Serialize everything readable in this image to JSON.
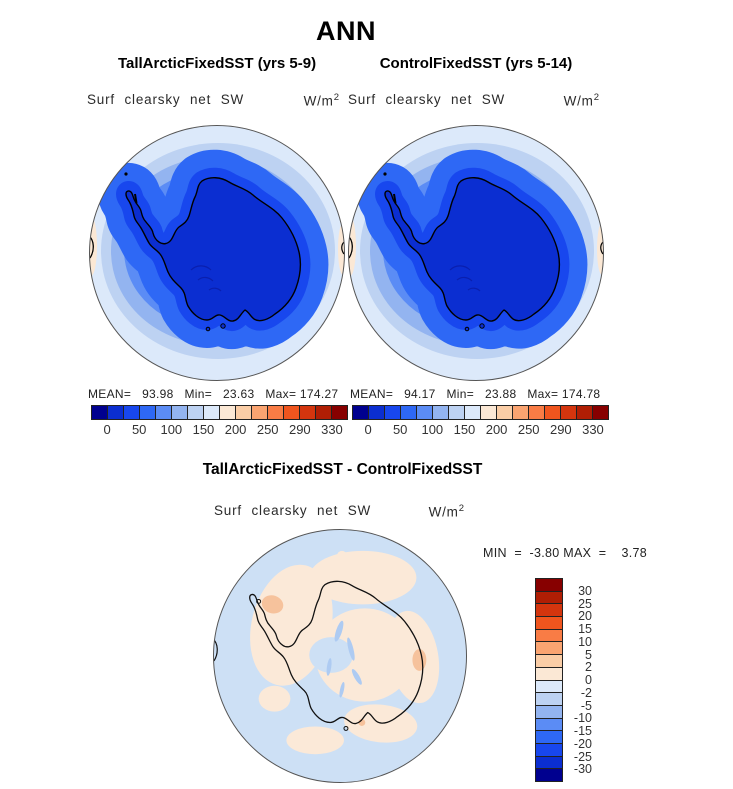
{
  "title": "ANN",
  "units": "W/m",
  "units_sup": "2",
  "palette": [
    "#00008F",
    "#0B2ED1",
    "#1847EE",
    "#2E68F5",
    "#5B8CF5",
    "#93B4F0",
    "#BDD2F2",
    "#DCE9FA",
    "#FBE8D5",
    "#FACDA6",
    "#FAA471",
    "#F97C45",
    "#F0551E",
    "#D4350E",
    "#B01E04",
    "#870000"
  ],
  "diff_colors": {
    "ocean": "#CDE0F5",
    "weak_pos": "#FBE9D8",
    "pos": "#F6C29C",
    "weak_neg": "#AECBF2",
    "coast": "#111111"
  },
  "panels": [
    {
      "subtitle": "TallArcticFixedSST (yrs 5-9)",
      "field": "Surf clearsky net SW",
      "stats": "MEAN=   93.98   Min=   23.63   Max= 174.27",
      "colorbar_ticks": [
        "0",
        "50",
        "100",
        "150",
        "200",
        "250",
        "290",
        "330"
      ]
    },
    {
      "subtitle": "ControlFixedSST (yrs 5-14)",
      "field": "Surf clearsky net SW",
      "stats": "MEAN=   94.17   Min=   23.88   Max= 174.78",
      "colorbar_ticks": [
        "0",
        "50",
        "100",
        "150",
        "200",
        "250",
        "290",
        "330"
      ]
    }
  ],
  "diff": {
    "subtitle": "TallArcticFixedSST - ControlFixedSST",
    "field": "Surf clearsky net SW",
    "minmax": "MIN  =  -3.80 MAX  =    3.78",
    "colorbar_ticks": [
      "30",
      "25",
      "20",
      "15",
      "10",
      "5",
      "2",
      "0",
      "-2",
      "-5",
      "-10",
      "-15",
      "-20",
      "-25",
      "-30"
    ]
  },
  "chart_data": {
    "type": "heatmap",
    "subtype": "filled-contour polar stereographic maps (Antarctica)",
    "season": "ANN",
    "variable": "Surf clearsky net SW",
    "units": "W/m2",
    "colormap": "blue-white-red, 16 classes",
    "panels": [
      {
        "title": "TallArcticFixedSST (yrs 5-9)",
        "mean": 93.98,
        "min": 23.63,
        "max": 174.27,
        "contour_levels": [
          0,
          25,
          50,
          75,
          100,
          125,
          150,
          175,
          200,
          225,
          250,
          270,
          290,
          310,
          330
        ],
        "labeled_levels": [
          0,
          50,
          100,
          150,
          200,
          250,
          290,
          330
        ],
        "legend_position": "below"
      },
      {
        "title": "ControlFixedSST (yrs 5-14)",
        "mean": 94.17,
        "min": 23.88,
        "max": 174.78,
        "contour_levels": [
          0,
          25,
          50,
          75,
          100,
          125,
          150,
          175,
          200,
          225,
          250,
          270,
          290,
          310,
          330
        ],
        "labeled_levels": [
          0,
          50,
          100,
          150,
          200,
          250,
          290,
          330
        ],
        "legend_position": "below"
      },
      {
        "title": "TallArcticFixedSST - ControlFixedSST",
        "min": -3.8,
        "max": 3.78,
        "contour_levels": [
          -30,
          -25,
          -20,
          -15,
          -10,
          -5,
          -2,
          0,
          2,
          5,
          10,
          15,
          20,
          25,
          30
        ],
        "legend_position": "right"
      }
    ]
  }
}
